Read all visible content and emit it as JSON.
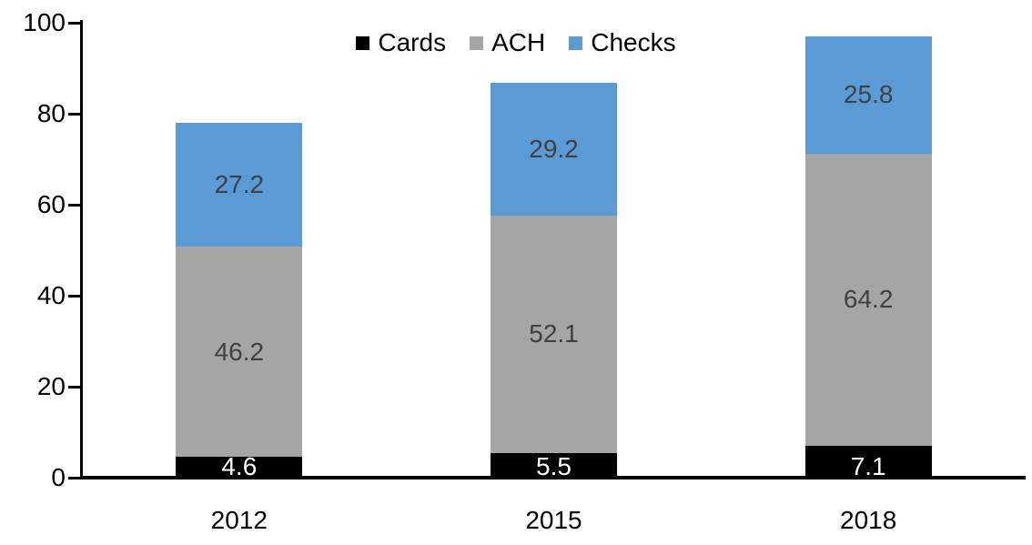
{
  "chart_data": {
    "type": "bar",
    "stacked": true,
    "title": "",
    "xlabel": "",
    "ylabel": "",
    "categories": [
      "2012",
      "2015",
      "2018"
    ],
    "series": [
      {
        "name": "Cards",
        "color": "#000000",
        "label_color": "#FFFFFF",
        "values": [
          4.6,
          5.5,
          7.1
        ]
      },
      {
        "name": "ACH",
        "color": "#A5A5A5",
        "label_color": "#404040",
        "values": [
          46.2,
          52.1,
          64.2
        ]
      },
      {
        "name": "Checks",
        "color": "#5B9BD5",
        "label_color": "#404040",
        "values": [
          27.2,
          29.2,
          25.8
        ]
      }
    ],
    "ylim": [
      0,
      100
    ],
    "yticks": [
      0,
      20,
      40,
      60,
      80,
      100
    ],
    "grid": false,
    "legend_position": "top-center",
    "axis_color": "#000000",
    "data_labels_format": "one-decimal"
  }
}
